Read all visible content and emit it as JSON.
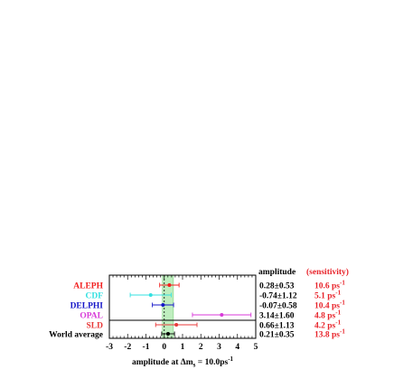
{
  "chart_data": {
    "type": "scatter",
    "xlabel_parts": [
      "amplitude at Δm",
      "s",
      " = 10.0ps",
      "-1"
    ],
    "xlim": [
      -3,
      5
    ],
    "xticks": [
      -3,
      -2,
      -1,
      0,
      1,
      2,
      3,
      4,
      5
    ],
    "band": [
      -0.1,
      0.5
    ],
    "header": {
      "amplitude": "amplitude",
      "sensitivity": "(sensitivity)"
    },
    "colors": {
      "band": "#bfeebf",
      "band_edge": "#7fd07f",
      "header_sens": "#e8232a",
      "sens": "#e8232a",
      "text": "#000000"
    },
    "series": [
      {
        "name": "ALEPH",
        "color": "#f2201f",
        "value": 0.28,
        "error": 0.53,
        "amp_label": "0.28±0.53",
        "sens_value": "10.6 ps",
        "sens_sup": "-1"
      },
      {
        "name": "CDF",
        "color": "#33e0e0",
        "value": -0.74,
        "error": 1.12,
        "amp_label": "-0.74±1.12",
        "sens_value": "5.1 ps",
        "sens_sup": "-1"
      },
      {
        "name": "DELPHI",
        "color": "#1515c8",
        "value": -0.07,
        "error": 0.58,
        "amp_label": "-0.07±0.58",
        "sens_value": "10.4 ps",
        "sens_sup": "-1"
      },
      {
        "name": "OPAL",
        "color": "#d83ad8",
        "value": 3.14,
        "error": 1.6,
        "amp_label": "3.14±1.60",
        "sens_value": "4.8 ps",
        "sens_sup": "-1"
      },
      {
        "name": "SLD",
        "color": "#e83a3a",
        "value": 0.66,
        "error": 1.13,
        "amp_label": "0.66±1.13",
        "sens_value": "4.2 ps",
        "sens_sup": "-1"
      }
    ],
    "average": {
      "name": "World average",
      "color": "#000000",
      "value": 0.21,
      "error": 0.35,
      "amp_label": "0.21±0.35",
      "sens_value": "13.8 ps",
      "sens_sup": "-1"
    }
  }
}
